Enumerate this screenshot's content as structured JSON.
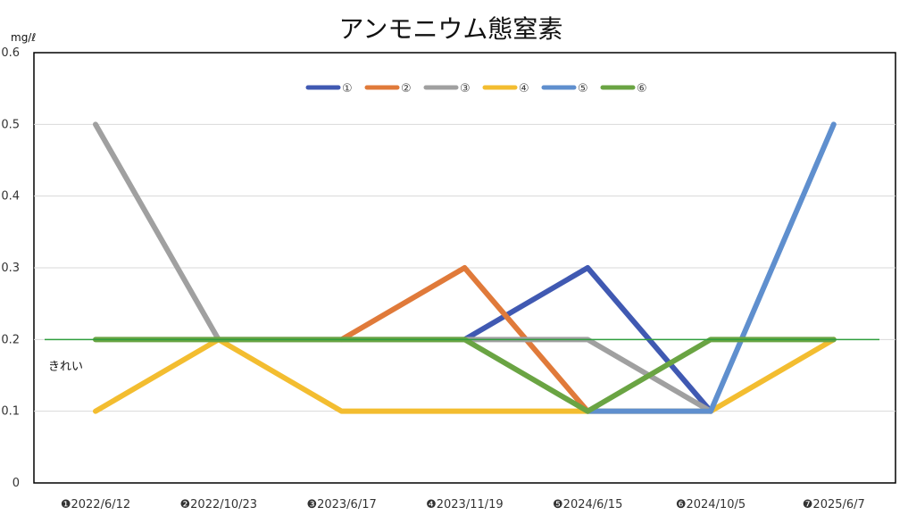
{
  "chart_data": {
    "type": "line",
    "title": "アンモニウム態窒素",
    "unit_label": "mg/ℓ",
    "xlabel": "",
    "ylabel": "",
    "ylim": [
      0,
      0.6
    ],
    "yticks": [
      "0",
      "0.1",
      "0.2",
      "0.3",
      "0.4",
      "0.5",
      "0.6"
    ],
    "ytick_values": [
      0,
      0.1,
      0.2,
      0.3,
      0.4,
      0.5,
      0.6
    ],
    "categories": [
      "❶2022/6/12",
      "❷2022/10/23",
      "❸2023/6/17",
      "❹2023/11/19",
      "❺2024/6/15",
      "❻2024/10/5",
      "❼2025/6/7"
    ],
    "grid": true,
    "legend_position": "top",
    "series": [
      {
        "name": "①",
        "color": "#4059b2",
        "values": [
          null,
          null,
          null,
          0.2,
          0.3,
          0.1,
          null
        ]
      },
      {
        "name": "②",
        "color": "#e07a3a",
        "values": [
          null,
          null,
          0.2,
          0.3,
          0.1,
          null,
          null
        ]
      },
      {
        "name": "③",
        "color": "#a0a0a0",
        "values": [
          0.5,
          0.2,
          0.2,
          0.2,
          0.2,
          0.1,
          null
        ]
      },
      {
        "name": "④",
        "color": "#f3bd30",
        "values": [
          0.1,
          0.2,
          0.1,
          0.1,
          0.1,
          0.1,
          0.2
        ]
      },
      {
        "name": "⑤",
        "color": "#5f8fce",
        "values": [
          null,
          null,
          null,
          null,
          0.1,
          0.1,
          0.5
        ]
      },
      {
        "name": "⑥",
        "color": "#6aa443",
        "values": [
          0.2,
          0.2,
          0.2,
          0.2,
          0.1,
          0.2,
          0.2
        ]
      }
    ],
    "reference_line": {
      "value": 0.2,
      "color": "#2e9e3e",
      "label": "きれい"
    }
  }
}
